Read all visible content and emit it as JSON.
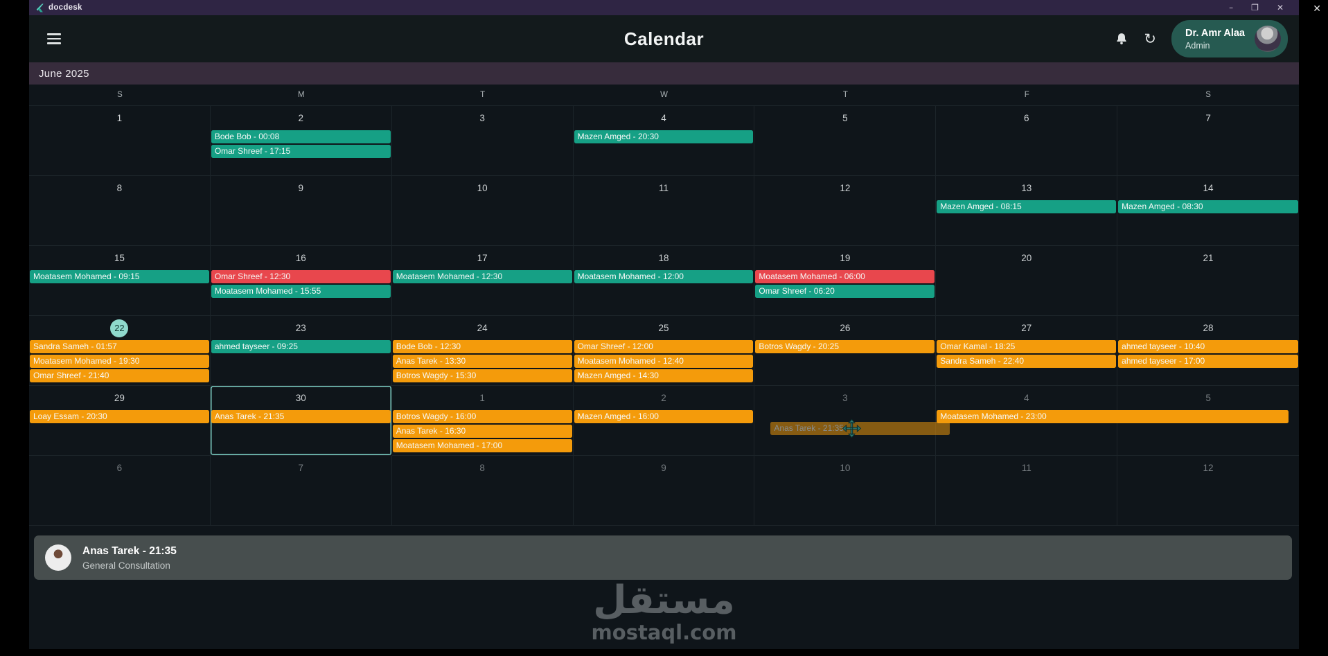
{
  "window": {
    "app_name": "docdesk",
    "minimize_glyph": "–",
    "restore_glyph": "❐",
    "close_glyph": "✕",
    "overlay_close_glyph": "✕"
  },
  "header": {
    "title": "Calendar",
    "refresh_glyph": "↻",
    "user_name": "Dr. Amr Alaa",
    "user_role": "Admin"
  },
  "calendar": {
    "month_label": "June 2025",
    "day_headers": [
      "S",
      "M",
      "T",
      "W",
      "T",
      "F",
      "S"
    ],
    "weeks": [
      [
        {
          "num": "1",
          "events": []
        },
        {
          "num": "2",
          "events": [
            {
              "label": "Bode Bob - 00:08",
              "color": "teal"
            },
            {
              "label": "Omar Shreef - 17:15",
              "color": "teal"
            }
          ]
        },
        {
          "num": "3",
          "events": []
        },
        {
          "num": "4",
          "events": [
            {
              "label": "Mazen Amged - 20:30",
              "color": "teal"
            }
          ]
        },
        {
          "num": "5",
          "events": []
        },
        {
          "num": "6",
          "events": []
        },
        {
          "num": "7",
          "events": []
        }
      ],
      [
        {
          "num": "8",
          "events": []
        },
        {
          "num": "9",
          "events": []
        },
        {
          "num": "10",
          "events": []
        },
        {
          "num": "11",
          "events": []
        },
        {
          "num": "12",
          "events": []
        },
        {
          "num": "13",
          "events": [
            {
              "label": "Mazen Amged - 08:15",
              "color": "teal"
            }
          ]
        },
        {
          "num": "14",
          "events": [
            {
              "label": "Mazen Amged - 08:30",
              "color": "teal"
            }
          ]
        }
      ],
      [
        {
          "num": "15",
          "events": [
            {
              "label": "Moatasem Mohamed - 09:15",
              "color": "teal"
            }
          ]
        },
        {
          "num": "16",
          "events": [
            {
              "label": "Omar Shreef - 12:30",
              "color": "red"
            },
            {
              "label": "Moatasem Mohamed - 15:55",
              "color": "teal"
            }
          ]
        },
        {
          "num": "17",
          "events": [
            {
              "label": "Moatasem Mohamed - 12:30",
              "color": "teal"
            }
          ]
        },
        {
          "num": "18",
          "events": [
            {
              "label": "Moatasem Mohamed - 12:00",
              "color": "teal"
            }
          ]
        },
        {
          "num": "19",
          "events": [
            {
              "label": "Moatasem Mohamed - 06:00",
              "color": "red"
            },
            {
              "label": "Omar Shreef - 06:20",
              "color": "teal"
            }
          ]
        },
        {
          "num": "20",
          "events": []
        },
        {
          "num": "21",
          "events": []
        }
      ],
      [
        {
          "num": "22",
          "today": true,
          "events": [
            {
              "label": "Sandra Sameh - 01:57",
              "color": "orange"
            },
            {
              "label": "Moatasem Mohamed - 19:30",
              "color": "orange"
            },
            {
              "label": "Omar Shreef - 21:40",
              "color": "orange"
            }
          ]
        },
        {
          "num": "23",
          "events": [
            {
              "label": "ahmed tayseer - 09:25",
              "color": "teal"
            }
          ]
        },
        {
          "num": "24",
          "events": [
            {
              "label": "Bode Bob - 12:30",
              "color": "orange"
            },
            {
              "label": "Anas Tarek - 13:30",
              "color": "orange"
            },
            {
              "label": "Botros Wagdy - 15:30",
              "color": "orange"
            }
          ]
        },
        {
          "num": "25",
          "events": [
            {
              "label": "Omar Shreef - 12:00",
              "color": "orange"
            },
            {
              "label": "Moatasem Mohamed - 12:40",
              "color": "orange"
            },
            {
              "label": "Mazen Amged - 14:30",
              "color": "orange"
            }
          ]
        },
        {
          "num": "26",
          "events": [
            {
              "label": "Botros Wagdy - 20:25",
              "color": "orange"
            }
          ]
        },
        {
          "num": "27",
          "events": [
            {
              "label": "Omar Kamal - 18:25",
              "color": "orange"
            },
            {
              "label": "Sandra Sameh - 22:40",
              "color": "orange"
            }
          ]
        },
        {
          "num": "28",
          "events": [
            {
              "label": "ahmed tayseer - 10:40",
              "color": "orange"
            },
            {
              "label": "ahmed tayseer - 17:00",
              "color": "orange"
            }
          ]
        }
      ],
      [
        {
          "num": "29",
          "events": [
            {
              "label": "Loay Essam - 20:30",
              "color": "orange"
            }
          ]
        },
        {
          "num": "30",
          "selected": true,
          "events": [
            {
              "label": "Anas Tarek - 21:35",
              "color": "orange"
            }
          ]
        },
        {
          "num": "1",
          "outside": true,
          "events": [
            {
              "label": "Botros Wagdy - 16:00",
              "color": "orange"
            },
            {
              "label": "Anas Tarek - 16:30",
              "color": "orange"
            },
            {
              "label": "Moatasem Mohamed - 17:00",
              "color": "orange"
            }
          ]
        },
        {
          "num": "2",
          "outside": true,
          "events": [
            {
              "label": "Mazen Amged - 16:00",
              "color": "orange"
            }
          ]
        },
        {
          "num": "3",
          "outside": true,
          "events": [
            {
              "label": "Anas Tarek - 21:35",
              "color": "orange",
              "ghost": true
            }
          ]
        },
        {
          "num": "4",
          "outside": true,
          "events": [
            {
              "label": "Moatasem Mohamed - 23:00",
              "color": "orange",
              "span": 2
            }
          ]
        },
        {
          "num": "5",
          "outside": true,
          "events": []
        }
      ],
      [
        {
          "num": "6",
          "outside": true,
          "events": []
        },
        {
          "num": "7",
          "outside": true,
          "events": []
        },
        {
          "num": "8",
          "outside": true,
          "events": []
        },
        {
          "num": "9",
          "outside": true,
          "events": []
        },
        {
          "num": "10",
          "outside": true,
          "events": []
        },
        {
          "num": "11",
          "outside": true,
          "events": []
        },
        {
          "num": "12",
          "outside": true,
          "events": []
        }
      ]
    ]
  },
  "footer_card": {
    "title": "Anas Tarek - 21:35",
    "subtitle": "General Consultation"
  },
  "watermark": {
    "arabic": "مستقل",
    "latin": "mostaql.com"
  },
  "colors": {
    "teal": "#16a085",
    "orange": "#f49b0b",
    "red": "#e8474d"
  }
}
